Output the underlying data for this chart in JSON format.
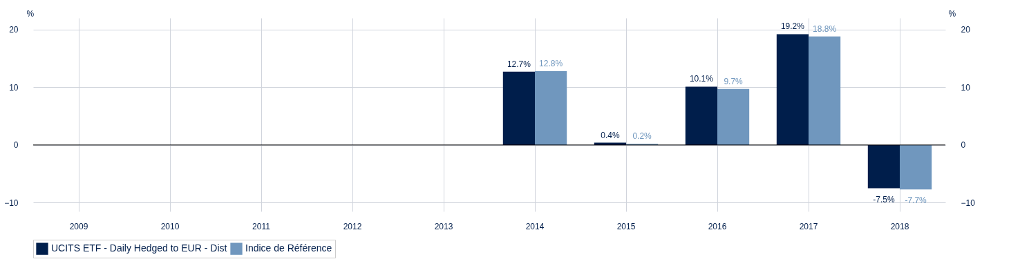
{
  "chart_data": {
    "type": "bar",
    "categories": [
      "2009",
      "2010",
      "2011",
      "2012",
      "2013",
      "2014",
      "2015",
      "2016",
      "2017",
      "2018"
    ],
    "series": [
      {
        "name": "UCITS ETF - Daily Hedged to EUR - Dist",
        "color": "#001e4b",
        "values": [
          null,
          null,
          null,
          null,
          null,
          12.7,
          0.4,
          10.1,
          19.2,
          -7.5
        ],
        "value_labels": [
          null,
          null,
          null,
          null,
          null,
          "12.7%",
          "0.4%",
          "10.1%",
          "19.2%",
          "-7.5%"
        ]
      },
      {
        "name": "Indice de Référence",
        "color": "#7097be",
        "values": [
          null,
          null,
          null,
          null,
          null,
          12.8,
          0.2,
          9.7,
          18.8,
          -7.7
        ],
        "value_labels": [
          null,
          null,
          null,
          null,
          null,
          "12.8%",
          "0.2%",
          "9.7%",
          "18.8%",
          "-7.7%"
        ]
      }
    ],
    "ylabel": "%",
    "y2label": "%",
    "ylim": [
      -11.5,
      22
    ],
    "yticks": [
      -10,
      0,
      10,
      20
    ],
    "y2lim": [
      -11.5,
      22
    ],
    "y2ticks": [
      -10,
      0,
      10,
      20
    ],
    "ref_lines": [
      {
        "axis": "y",
        "value": 0,
        "color": "#000000"
      }
    ],
    "grid": true,
    "legend": "bottom"
  }
}
